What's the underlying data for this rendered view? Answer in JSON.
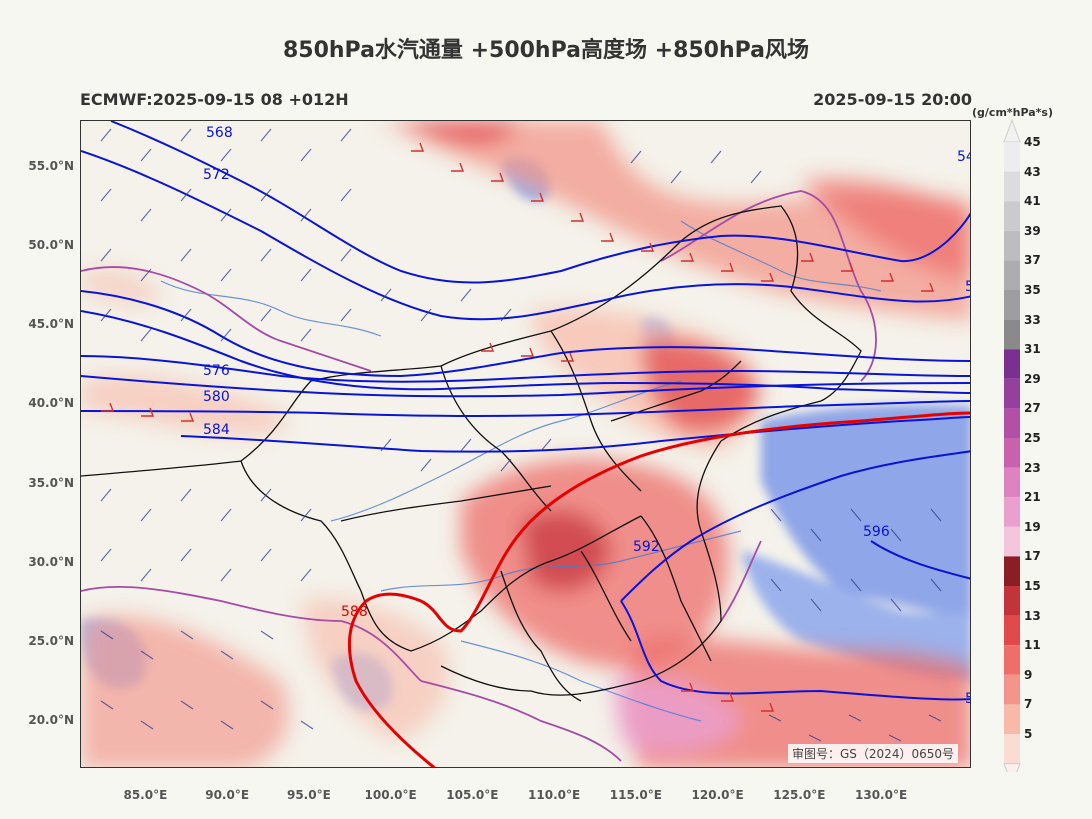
{
  "title": "850hPa水汽通量 +500hPa高度场 +850hPa风场",
  "subtitle_left": "ECMWF:2025-09-15 08 +012H",
  "subtitle_right": "2025-09-15 20:00",
  "colorbar_unit": "(g/cm*hPa*s)",
  "approval_number": "审图号：GS（2024）0650号",
  "y_tick_labels": [
    "55.0°N",
    "50.0°N",
    "45.0°N",
    "40.0°N",
    "35.0°N",
    "30.0°N",
    "25.0°N",
    "20.0°N"
  ],
  "x_tick_labels": [
    "85.0°E",
    "90.0°E",
    "95.0°E",
    "100.0°E",
    "105.0°E",
    "110.0°E",
    "115.0°E",
    "120.0°E",
    "125.0°E",
    "130.0°E"
  ],
  "colorbar_levels": [
    "45",
    "43",
    "41",
    "39",
    "37",
    "35",
    "33",
    "31",
    "29",
    "27",
    "25",
    "23",
    "21",
    "19",
    "17",
    "15",
    "13",
    "11",
    "9",
    "7",
    "5"
  ],
  "colorbar_colors": [
    "#ededed",
    "#dcdcdc",
    "#cbcbcb",
    "#bdbdbd",
    "#adadad",
    "#9e9e9e",
    "#8a8a8a",
    "#7b2f8e",
    "#96409e",
    "#b24fa6",
    "#c961ad",
    "#dd83bf",
    "#ea9fce",
    "#f3c6dc",
    "#8b1e24",
    "#c4333a",
    "#e2494d",
    "#ee6e69",
    "#f3958a",
    "#f8b9a8",
    "#fadcd2"
  ],
  "contour_labels": {
    "c568": "568",
    "c572": "572",
    "c576": "576",
    "c580": "580",
    "c584": "584",
    "c588": "588",
    "c592": "592",
    "c596": "596",
    "c588_bottom": "5880",
    "edge_right_top": "54",
    "edge_right_mid": "5",
    "edge_right_bottom": "5"
  },
  "map": {
    "lon_range": [
      81,
      135.5
    ],
    "lat_range": [
      17,
      58
    ],
    "fields": [
      "850hPa水汽通量",
      "500hPa高度场",
      "850hPa风场"
    ],
    "colors": {
      "land": "#f4f2ea",
      "ocean": "#8fa6e8",
      "geopotential_contour": "#0a14d6",
      "contour_5880": "#e60000",
      "wind_barb": "#2b3a8c",
      "strong_wind_barb": "#d23030",
      "province_border": "#111111",
      "country_border": "#a64ca6",
      "river": "#4a7ad0"
    }
  }
}
